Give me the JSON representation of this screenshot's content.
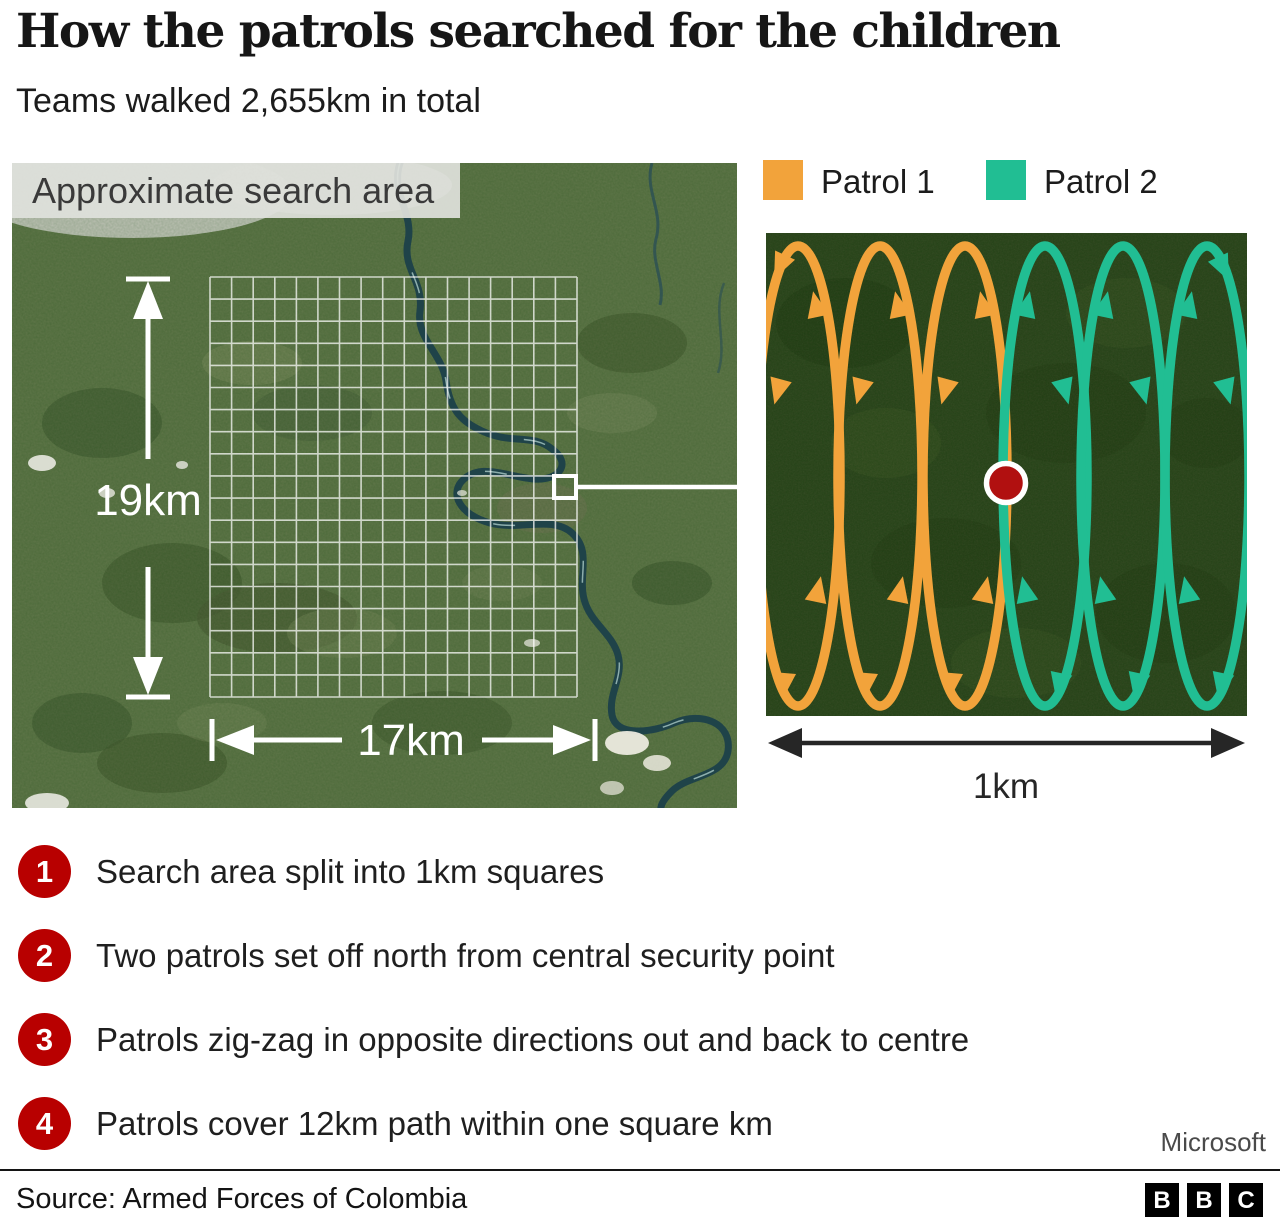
{
  "header": {
    "title": "How the patrols searched for the children",
    "subtitle": "Teams walked 2,655km in total"
  },
  "legend": {
    "patrol1": {
      "label": "Patrol 1",
      "color": "#F2A33B"
    },
    "patrol2": {
      "label": "Patrol 2",
      "color": "#21BE93"
    }
  },
  "left_map": {
    "overlay_label": "Approximate search area",
    "height_label": "19km",
    "width_label": "17km",
    "grid": {
      "rows": 19,
      "cols": 17
    }
  },
  "right_panel": {
    "scale_label": "1km",
    "center_point_color": "#B11010",
    "patrols": [
      {
        "name": "Patrol 1",
        "color": "#F2A33B",
        "direction": "ccw",
        "columns": [
          32,
          114,
          199
        ]
      },
      {
        "name": "Patrol 2",
        "color": "#21BE93",
        "direction": "cw",
        "columns": [
          279,
          357,
          441
        ]
      }
    ]
  },
  "steps": [
    {
      "number": "1",
      "text": "Search area split into 1km squares"
    },
    {
      "number": "2",
      "text": "Two patrols set off north from central security point"
    },
    {
      "number": "3",
      "text": "Patrols zig-zag in opposite directions out and back to centre"
    },
    {
      "number": "4",
      "text": "Patrols cover 12km path within one square km"
    }
  ],
  "step_circle_color": "#B80000",
  "footer": {
    "attribution": "Microsoft",
    "source": "Source: Armed Forces of Colombia",
    "logo_letters": [
      "B",
      "B",
      "C"
    ]
  }
}
